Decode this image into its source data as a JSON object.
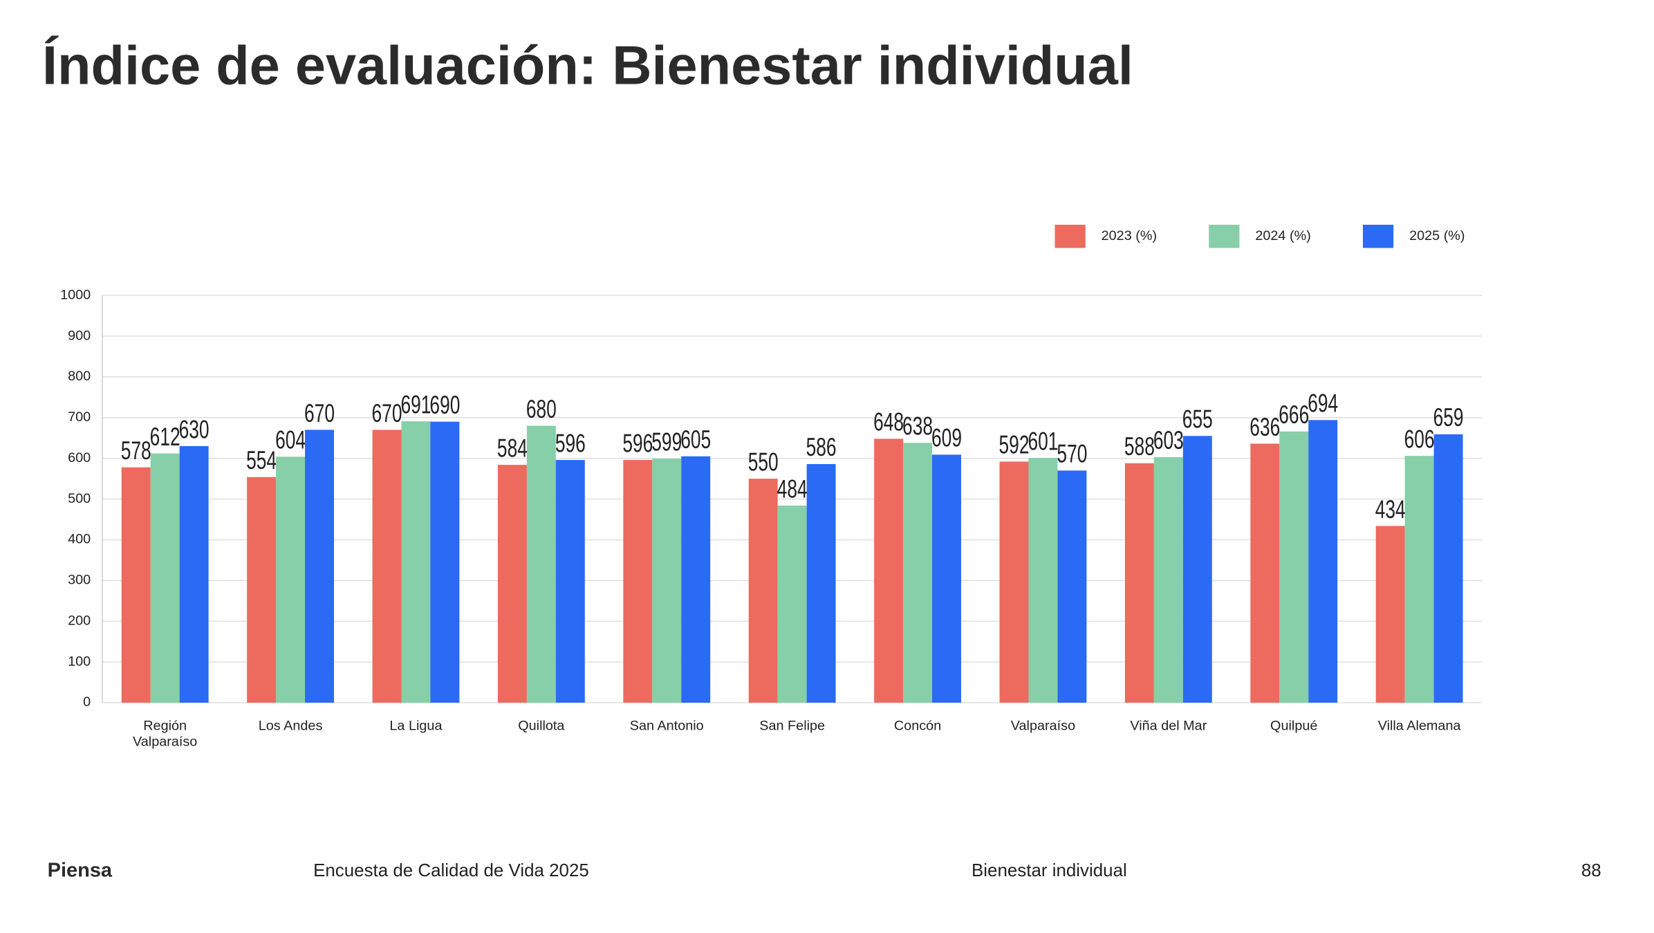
{
  "title": "Índice de evaluación: Bienestar individual",
  "chart_data": {
    "type": "bar",
    "categories": [
      "Región Valparaíso",
      "Los Andes",
      "La Ligua",
      "Quillota",
      "San Antonio",
      "San Felipe",
      "Concón",
      "Valparaíso",
      "Viña del Mar",
      "Quilpué",
      "Villa Alemana"
    ],
    "series": [
      {
        "name": "2023 (%)",
        "color": "#ec6b5e",
        "values": [
          578,
          554,
          670,
          584,
          596,
          550,
          648,
          592,
          588,
          636,
          434
        ]
      },
      {
        "name": "2024 (%)",
        "color": "#86cfa8",
        "values": [
          612,
          604,
          691,
          680,
          599,
          484,
          638,
          601,
          603,
          666,
          606
        ]
      },
      {
        "name": "2025 (%)",
        "color": "#2a6af5",
        "values": [
          630,
          670,
          690,
          596,
          605,
          586,
          609,
          570,
          655,
          694,
          659
        ]
      }
    ],
    "ylim": [
      0,
      1000
    ],
    "yticks": [
      0,
      100,
      200,
      300,
      400,
      500,
      600,
      700,
      800,
      900,
      1000
    ],
    "grid": true,
    "legend": "top-right"
  },
  "footer": {
    "brand": "Piensa",
    "survey": "Encuesta de Calidad de Vida 2025",
    "section": "Bienestar individual",
    "page": "88"
  }
}
